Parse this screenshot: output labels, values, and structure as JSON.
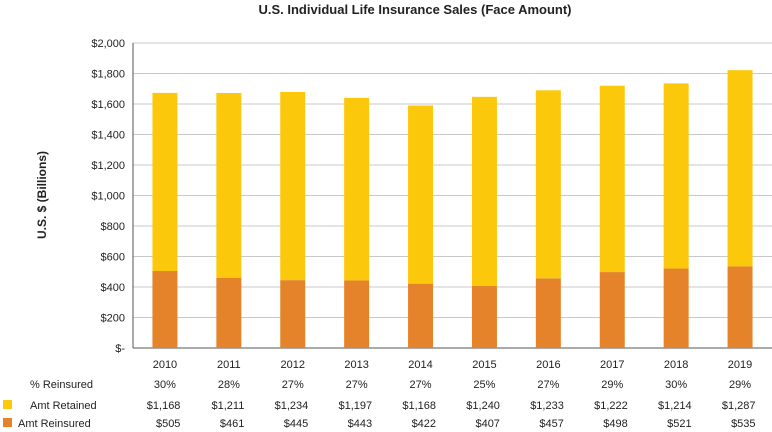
{
  "colors": {
    "retained": "#FCC80C",
    "reinsured": "#E4832A",
    "grid": "#C8C8C8",
    "axis": "#555555"
  },
  "chart_data": {
    "type": "bar",
    "stacked": true,
    "title": "U.S. Individual Life Insurance Sales (Face Amount)",
    "xlabel": "",
    "ylabel": "U.S. $ (Billions)",
    "ylim": [
      0,
      2000
    ],
    "yticks": [
      0,
      200,
      400,
      600,
      800,
      1000,
      1200,
      1400,
      1600,
      1800,
      2000
    ],
    "ytick_labels": [
      "$-",
      "$200",
      "$400",
      "$600",
      "$800",
      "$1,000",
      "$1,200",
      "$1,400",
      "$1,600",
      "$1,800",
      "$2,000"
    ],
    "grid": true,
    "categories": [
      "2010",
      "2011",
      "2012",
      "2013",
      "2014",
      "2015",
      "2016",
      "2017",
      "2018",
      "2019"
    ],
    "series": [
      {
        "name": "Amt Reinsured",
        "color_key": "reinsured",
        "values": [
          505,
          461,
          445,
          443,
          422,
          407,
          457,
          498,
          521,
          535
        ],
        "labels": [
          "$505",
          "$461",
          "$445",
          "$443",
          "$422",
          "$407",
          "$457",
          "$498",
          "$521",
          "$535"
        ]
      },
      {
        "name": "Amt Retained",
        "color_key": "retained",
        "values": [
          1168,
          1211,
          1234,
          1197,
          1168,
          1240,
          1233,
          1222,
          1214,
          1287
        ],
        "labels": [
          "$1,168",
          "$1,211",
          "$1,234",
          "$1,197",
          "$1,168",
          "$1,240",
          "$1,233",
          "$1,222",
          "$1,214",
          "$1,287"
        ]
      }
    ],
    "table": {
      "pct_label": "% Reinsured",
      "pct_values": [
        "30%",
        "28%",
        "27%",
        "27%",
        "27%",
        "25%",
        "27%",
        "29%",
        "30%",
        "29%"
      ]
    }
  }
}
